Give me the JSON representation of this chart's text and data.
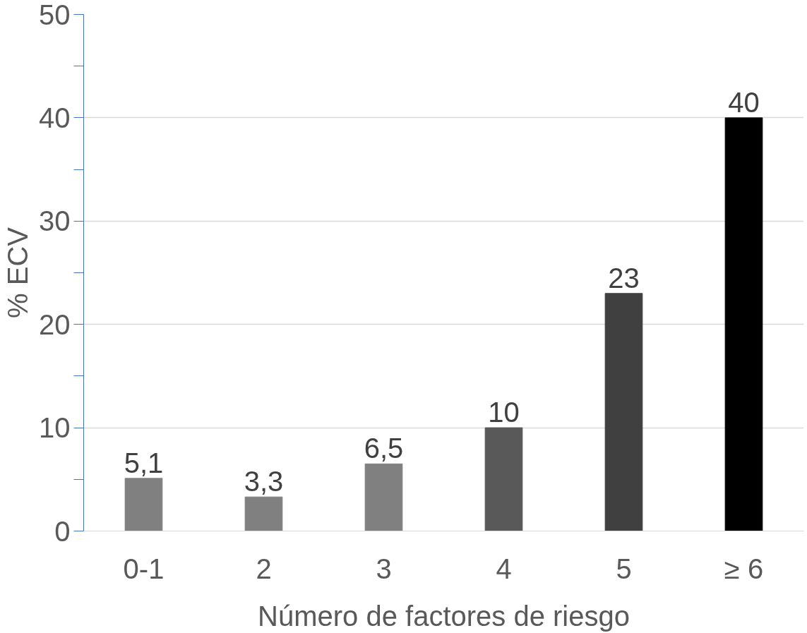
{
  "chart_data": {
    "type": "bar",
    "xlabel": "Número de factores de riesgo",
    "ylabel": "% ECV",
    "categories": [
      "0-1",
      "2",
      "3",
      "4",
      "5",
      "≥ 6"
    ],
    "values": [
      5.1,
      3.3,
      6.5,
      10,
      23,
      40
    ],
    "colors": [
      "#808080",
      "#808080",
      "#808080",
      "#595959",
      "#404040",
      "#000000"
    ],
    "value_labels": [
      "5,1",
      "3,3",
      "6,5",
      "10",
      "23",
      "40"
    ],
    "ylim": [
      0,
      50
    ],
    "yticks": [
      0,
      {
        "value": 5,
        "label": null
      },
      10,
      {
        "value": 15,
        "label": null
      },
      20,
      {
        "value": 25,
        "label": null
      },
      30,
      {
        "value": 35,
        "label": null
      },
      40,
      {
        "value": 45,
        "label": null
      },
      50
    ],
    "grid": "y"
  }
}
